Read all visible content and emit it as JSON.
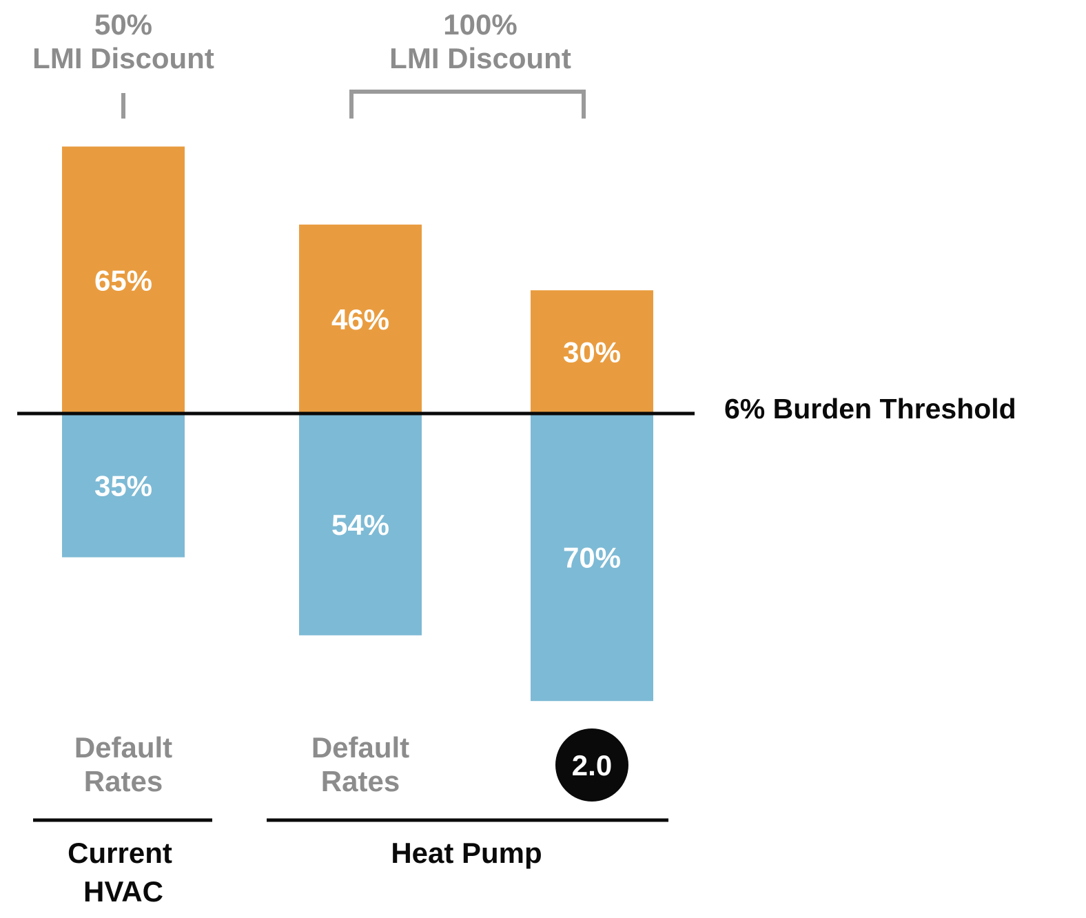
{
  "chart_data": {
    "type": "bar",
    "stacked": true,
    "diverging": true,
    "threshold_label": "6% Burden Threshold",
    "top_groups": [
      {
        "line1": "50%",
        "line2": "LMI Discount"
      },
      {
        "line1": "100%",
        "line2": "LMI Discount"
      }
    ],
    "categories": [
      {
        "rate_line1": "Default",
        "rate_line2": "Rates",
        "badge": ""
      },
      {
        "rate_line1": "Default",
        "rate_line2": "Rates",
        "badge": ""
      },
      {
        "rate_line1": "",
        "rate_line2": "",
        "badge": "2.0"
      }
    ],
    "series": [
      {
        "position": "above",
        "values": [
          65,
          46,
          30
        ],
        "labels": [
          "65%",
          "46%",
          "30%"
        ]
      },
      {
        "position": "below",
        "values": [
          35,
          54,
          70
        ],
        "labels": [
          "35%",
          "54%",
          "70%"
        ]
      }
    ],
    "bottom_groups": [
      {
        "line1": "Current",
        "line2": "HVAC"
      },
      {
        "line1": "Heat Pump",
        "line2": ""
      }
    ],
    "colors": {
      "above": "#E99C3F",
      "below": "#7DBAD5",
      "bar_label": "#FFFFFF",
      "muted_text": "#8C8C8C",
      "bracket": "#9A9A9A",
      "ink": "#0A0A0A",
      "badge_fill": "#0A0A0A",
      "badge_text": "#FFFFFF"
    }
  }
}
